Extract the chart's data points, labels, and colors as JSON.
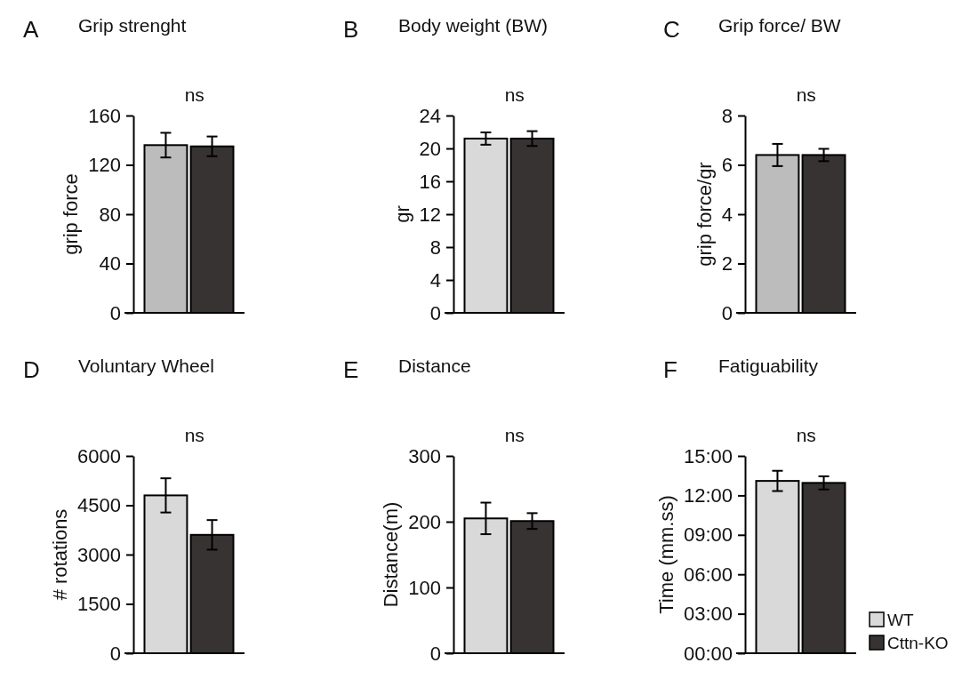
{
  "chart_data": [
    {
      "type": "bar",
      "title": "Grip strenght",
      "ylabel": "grip force",
      "annotations": [
        "A",
        "ns"
      ],
      "categories": [
        null
      ],
      "ylim": [
        0,
        160
      ],
      "yticks": [
        0,
        40,
        80,
        120,
        160
      ],
      "grid": false,
      "legend": false,
      "series": [
        {
          "color": "#bcbcbc",
          "values": [
            136
          ],
          "errors": [
            10
          ]
        },
        {
          "color": "#373333",
          "values": [
            135
          ],
          "errors": [
            8
          ]
        }
      ]
    },
    {
      "type": "bar",
      "title": "Body weight (BW)",
      "ylabel": "gr",
      "annotations": [
        "B",
        "ns"
      ],
      "categories": [
        null
      ],
      "ylim": [
        0,
        24
      ],
      "yticks": [
        0,
        4,
        8,
        12,
        16,
        20,
        24
      ],
      "grid": false,
      "legend": false,
      "series": [
        {
          "color": "#d9d9d9",
          "values": [
            21.2
          ],
          "errors": [
            0.75
          ]
        },
        {
          "color": "#373333",
          "values": [
            21.2
          ],
          "errors": [
            0.9
          ]
        }
      ]
    },
    {
      "type": "bar",
      "title": "Grip force/ BW",
      "ylabel": "grip force/gr",
      "annotations": [
        "C",
        "ns"
      ],
      "categories": [
        null
      ],
      "ylim": [
        0,
        8
      ],
      "yticks": [
        0,
        2,
        4,
        6,
        8
      ],
      "grid": false,
      "legend": false,
      "series": [
        {
          "color": "#bcbcbc",
          "values": [
            6.4
          ],
          "errors": [
            0.45
          ]
        },
        {
          "color": "#373333",
          "values": [
            6.4
          ],
          "errors": [
            0.25
          ]
        }
      ]
    },
    {
      "type": "bar",
      "title": "Voluntary Wheel",
      "ylabel": "# rotations",
      "annotations": [
        "D",
        "ns"
      ],
      "categories": [
        null
      ],
      "ylim": [
        0,
        6000
      ],
      "yticks": [
        0,
        1500,
        3000,
        4500,
        6000
      ],
      "grid": false,
      "legend": false,
      "series": [
        {
          "color": "#d9d9d9",
          "values": [
            4800
          ],
          "errors": [
            520
          ]
        },
        {
          "color": "#373333",
          "values": [
            3600
          ],
          "errors": [
            450
          ]
        }
      ]
    },
    {
      "type": "bar",
      "title": "Distance",
      "ylabel": "Distance(m)",
      "annotations": [
        "E",
        "ns"
      ],
      "categories": [
        null
      ],
      "ylim": [
        0,
        300
      ],
      "yticks": [
        0,
        100,
        200,
        300
      ],
      "grid": false,
      "legend": false,
      "series": [
        {
          "color": "#d9d9d9",
          "values": [
            205
          ],
          "errors": [
            24
          ]
        },
        {
          "color": "#373333",
          "values": [
            201
          ],
          "errors": [
            12
          ]
        }
      ]
    },
    {
      "type": "bar",
      "title": "Fatiguability",
      "ylabel": "Time (mm.ss)",
      "annotations": [
        "F",
        "ns"
      ],
      "categories": [
        null
      ],
      "ylim": [
        0,
        15
      ],
      "yticks": [
        {
          "value": 0,
          "label": "00:00"
        },
        {
          "value": 3,
          "label": "03:00"
        },
        {
          "value": 6,
          "label": "06:00"
        },
        {
          "value": 9,
          "label": "09:00"
        },
        {
          "value": 12,
          "label": "12:00"
        },
        {
          "value": 15,
          "label": "15:00"
        }
      ],
      "grid": false,
      "legend": "bottom right",
      "series": [
        {
          "name": "WT",
          "color": "#d9d9d9",
          "values": [
            13.1
          ],
          "errors": [
            0.77
          ]
        },
        {
          "name": "Cttn-KO",
          "color": "#373333",
          "values": [
            12.95
          ],
          "errors": [
            0.5
          ]
        }
      ]
    }
  ]
}
